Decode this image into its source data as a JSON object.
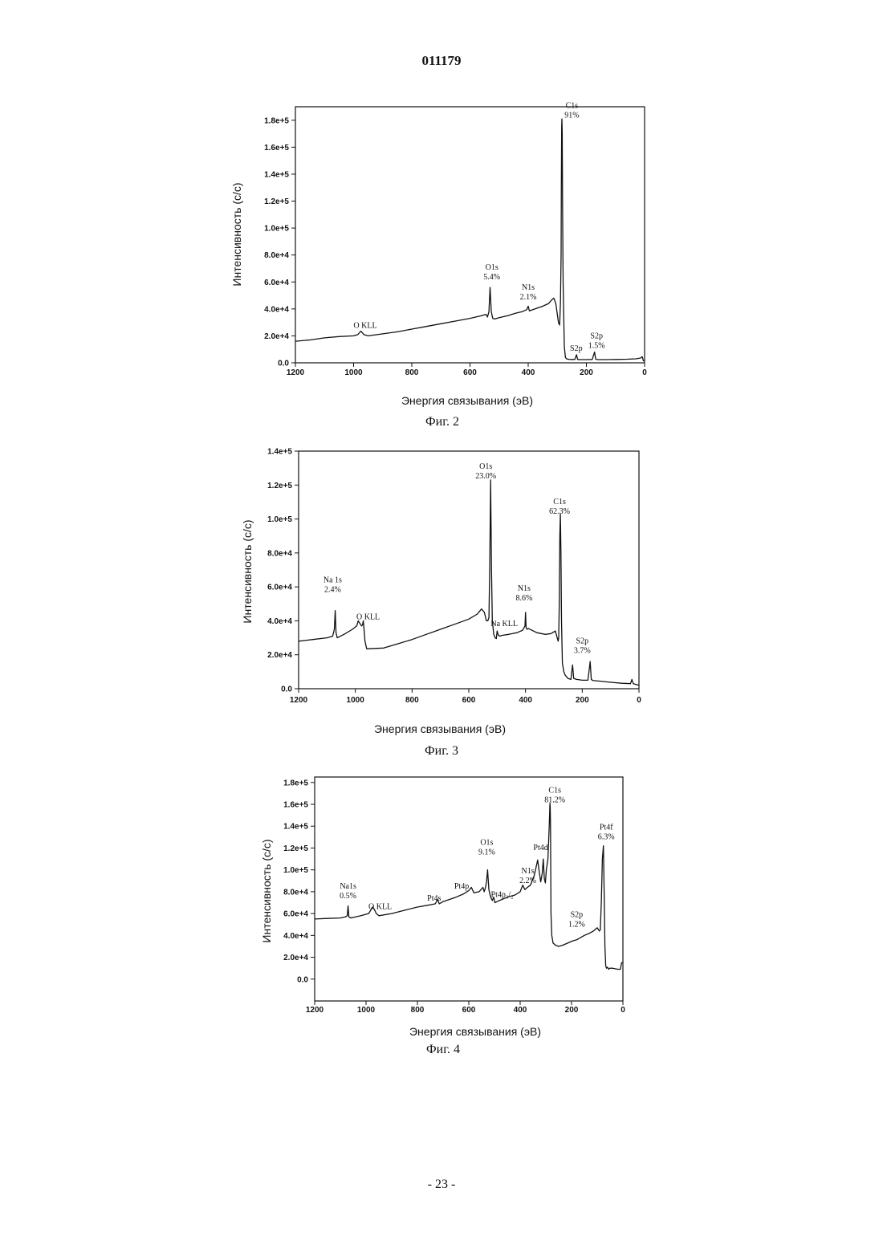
{
  "header": {
    "doc_number": "011179"
  },
  "footer": {
    "page_number": "- 23 -"
  },
  "chart_data": [
    {
      "type": "line",
      "caption": "Фиг. 2",
      "xlabel": "Энергия связывания (эВ)",
      "ylabel": "Интенсивность (с/с)",
      "xlim": [
        1200,
        0
      ],
      "ylim": [
        0,
        190000
      ],
      "x_ticks": [
        1200,
        1000,
        800,
        600,
        400,
        200,
        0
      ],
      "x_tick_labels": [
        "1200",
        "1000",
        "800",
        "600",
        "400",
        "200",
        "0"
      ],
      "y_ticks": [
        0,
        20000,
        40000,
        60000,
        80000,
        100000,
        120000,
        140000,
        160000,
        180000
      ],
      "y_tick_labels": [
        "0.0",
        "2.0e+4",
        "4.0e+4",
        "6.0e+4",
        "8.0e+4",
        "1.0e+5",
        "1.2e+5",
        "1.4e+5",
        "1.6e+5",
        "1.8e+5"
      ],
      "grid": false,
      "series": [
        {
          "x": [
            1200,
            1150,
            1100,
            1050,
            1000,
            985,
            975,
            965,
            950,
            900,
            850,
            800,
            750,
            700,
            650,
            600,
            560,
            545,
            540,
            535,
            531,
            527,
            522,
            515,
            500,
            470,
            440,
            420,
            405,
            400,
            396,
            390,
            370,
            350,
            330,
            320,
            312,
            305,
            300,
            296,
            292,
            289,
            287,
            286,
            285,
            284,
            283,
            282,
            280,
            276,
            272,
            268,
            265,
            260,
            250,
            240,
            234,
            230,
            220,
            200,
            180,
            172,
            168,
            164,
            160,
            140,
            100,
            60,
            30,
            15,
            8,
            4,
            0
          ],
          "y": [
            16000,
            17000,
            18500,
            19500,
            20000,
            21000,
            23500,
            21000,
            20000,
            21500,
            23000,
            25000,
            27000,
            29000,
            31000,
            33000,
            35000,
            36000,
            34000,
            38000,
            56000,
            38000,
            33000,
            32500,
            33500,
            35000,
            37000,
            38000,
            39500,
            42000,
            38500,
            39000,
            40500,
            42000,
            44000,
            46500,
            48000,
            44000,
            36000,
            30000,
            28000,
            45000,
            80000,
            130000,
            175000,
            181000,
            170000,
            120000,
            60000,
            12000,
            4000,
            3000,
            2800,
            2600,
            2500,
            2500,
            6000,
            2500,
            2400,
            2400,
            2500,
            8000,
            2800,
            2500,
            2400,
            2400,
            2500,
            2700,
            3000,
            3500,
            4500,
            1500,
            1500
          ]
        }
      ],
      "annotations": [
        {
          "x": 960,
          "y": 26000,
          "lines": [
            "O KLL"
          ]
        },
        {
          "x": 525,
          "y": 62000,
          "lines": [
            "O1s",
            "5.4%"
          ]
        },
        {
          "x": 400,
          "y": 47000,
          "lines": [
            "N1s",
            "2.1%"
          ]
        },
        {
          "x": 250,
          "y": 182000,
          "lines": [
            "C1s",
            "91%"
          ]
        },
        {
          "x": 235,
          "y": 9000,
          "lines": [
            "S2p"
          ]
        },
        {
          "x": 165,
          "y": 11000,
          "lines": [
            "S2p",
            "1.5%"
          ]
        }
      ]
    },
    {
      "type": "line",
      "caption": "Фиг. 3",
      "xlabel": "Энергия связывания (эВ)",
      "ylabel": "Интенсивность (с/с)",
      "xlim": [
        1200,
        0
      ],
      "ylim": [
        0,
        140000
      ],
      "x_ticks": [
        1200,
        1000,
        800,
        600,
        400,
        200,
        0
      ],
      "x_tick_labels": [
        "1200",
        "1000",
        "800",
        "600",
        "400",
        "200",
        "0"
      ],
      "y_ticks": [
        0,
        20000,
        40000,
        60000,
        80000,
        100000,
        120000,
        140000
      ],
      "y_tick_labels": [
        "0.0",
        "2.0e+4",
        "4.0e+4",
        "6.0e+4",
        "8.0e+4",
        "1.0e+5",
        "1.2e+5",
        "1.4e+5"
      ],
      "grid": false,
      "series": [
        {
          "x": [
            1200,
            1150,
            1100,
            1080,
            1074,
            1071,
            1068,
            1064,
            1040,
            1010,
            995,
            990,
            982,
            978,
            975,
            972,
            966,
            960,
            900,
            850,
            800,
            750,
            700,
            650,
            600,
            570,
            555,
            545,
            538,
            533,
            529,
            526,
            523,
            520,
            517,
            512,
            507,
            503,
            500,
            497,
            492,
            480,
            460,
            430,
            410,
            402,
            400,
            398,
            395,
            390,
            360,
            330,
            310,
            295,
            285,
            283,
            281,
            279,
            277,
            275,
            273,
            270,
            265,
            260,
            250,
            240,
            234,
            230,
            220,
            200,
            180,
            172,
            168,
            164,
            160,
            140,
            100,
            60,
            30,
            25,
            20,
            10,
            0
          ],
          "y": [
            28000,
            29000,
            30000,
            31000,
            35000,
            46000,
            33000,
            30000,
            32000,
            35000,
            37000,
            40000,
            38000,
            37000,
            37500,
            40000,
            28000,
            23500,
            24000,
            26500,
            29000,
            32000,
            35000,
            38000,
            41000,
            44000,
            47000,
            45000,
            40000,
            40000,
            42000,
            72000,
            123000,
            70000,
            40000,
            32000,
            30000,
            29500,
            34000,
            32000,
            31000,
            31500,
            32000,
            33000,
            34500,
            37000,
            45000,
            36000,
            35000,
            35500,
            33000,
            32000,
            32500,
            34000,
            28000,
            30000,
            50000,
            90000,
            103000,
            80000,
            40000,
            15000,
            10000,
            8000,
            6000,
            5500,
            14000,
            6000,
            5500,
            5000,
            5000,
            16000,
            5500,
            5000,
            4800,
            4500,
            3800,
            3200,
            3000,
            5500,
            3000,
            2500,
            2000
          ]
        }
      ],
      "annotations": [
        {
          "x": 1080,
          "y": 57000,
          "lines": [
            "Na 1s",
            "2.4%"
          ]
        },
        {
          "x": 955,
          "y": 41000,
          "lines": [
            "O KLL"
          ]
        },
        {
          "x": 540,
          "y": 124000,
          "lines": [
            "O1s",
            "23.0%"
          ]
        },
        {
          "x": 475,
          "y": 37000,
          "lines": [
            "Na KLL"
          ]
        },
        {
          "x": 405,
          "y": 52000,
          "lines": [
            "N1s",
            "8.6%"
          ]
        },
        {
          "x": 280,
          "y": 103000,
          "lines": [
            "C1s",
            "62.3%"
          ]
        },
        {
          "x": 200,
          "y": 21000,
          "lines": [
            "S2p",
            "3.7%"
          ]
        }
      ]
    },
    {
      "type": "line",
      "caption": "Фиг. 4",
      "xlabel": "Энергия связывания (эВ)",
      "ylabel": "Интенсивность (с/с)",
      "xlim": [
        1200,
        0
      ],
      "ylim": [
        -20000,
        185000
      ],
      "x_ticks": [
        1200,
        1000,
        800,
        600,
        400,
        200,
        0
      ],
      "x_tick_labels": [
        "1200",
        "1000",
        "800",
        "600",
        "400",
        "200",
        "0"
      ],
      "y_ticks": [
        0,
        20000,
        40000,
        60000,
        80000,
        100000,
        120000,
        140000,
        160000,
        180000
      ],
      "y_tick_labels": [
        "0.0",
        "2.0e+4",
        "4.0e+4",
        "6.0e+4",
        "8.0e+4",
        "1.0e+5",
        "1.2e+5",
        "1.4e+5",
        "1.6e+5",
        "1.8e+5"
      ],
      "grid": false,
      "series": [
        {
          "x": [
            1200,
            1150,
            1100,
            1080,
            1073,
            1070,
            1067,
            1060,
            1020,
            990,
            982,
            975,
            968,
            960,
            950,
            900,
            850,
            800,
            750,
            730,
            722,
            715,
            700,
            650,
            620,
            600,
            590,
            580,
            560,
            545,
            540,
            535,
            531,
            527,
            522,
            518,
            513,
            508,
            503,
            498,
            490,
            470,
            450,
            420,
            400,
            390,
            382,
            372,
            360,
            345,
            332,
            325,
            320,
            314,
            310,
            306,
            302,
            298,
            292,
            287,
            284,
            283,
            282,
            281,
            280,
            277,
            272,
            262,
            250,
            235,
            215,
            195,
            180,
            165,
            150,
            130,
            115,
            100,
            92,
            88,
            84,
            80,
            76,
            73,
            70,
            67,
            64,
            60,
            56,
            50,
            40,
            30,
            20,
            10,
            5,
            0
          ],
          "y": [
            55000,
            55500,
            56000,
            57000,
            58000,
            67000,
            57000,
            56000,
            58000,
            60000,
            63000,
            66000,
            64000,
            60000,
            58000,
            60000,
            63000,
            66000,
            68000,
            69000,
            73000,
            69000,
            71000,
            75000,
            78000,
            81000,
            84000,
            79000,
            80000,
            84000,
            80000,
            84000,
            89000,
            100000,
            82000,
            78000,
            74000,
            72000,
            75000,
            70000,
            71000,
            73000,
            75000,
            77000,
            80000,
            86000,
            82000,
            84000,
            86000,
            95000,
            109000,
            97000,
            89000,
            97000,
            110000,
            92000,
            88000,
            100000,
            110000,
            140000,
            161000,
            158000,
            140000,
            100000,
            60000,
            40000,
            33000,
            31000,
            30000,
            31000,
            33000,
            35000,
            36000,
            38000,
            40000,
            42000,
            44000,
            47000,
            44000,
            45000,
            70000,
            110000,
            122000,
            80000,
            30000,
            12000,
            10000,
            11000,
            9000,
            10000,
            10000,
            9500,
            9000,
            9000,
            15000,
            15000
          ]
        }
      ],
      "annotations": [
        {
          "x": 1070,
          "y": 74000,
          "lines": [
            "Na1s",
            "0.5%"
          ]
        },
        {
          "x": 945,
          "y": 64000,
          "lines": [
            "O KLL"
          ]
        },
        {
          "x": 735,
          "y": 72000,
          "lines": [
            "Pt4s"
          ]
        },
        {
          "x": 628,
          "y": 83000,
          "lines": [
            "Pt4p"
          ]
        },
        {
          "x": 530,
          "y": 114000,
          "lines": [
            "O1s",
            "9.1%"
          ]
        },
        {
          "x": 470,
          "y": 75000,
          "lines": [
            "Pt4p₃/₂"
          ]
        },
        {
          "x": 370,
          "y": 88000,
          "lines": [
            "N1s",
            "2.2%"
          ]
        },
        {
          "x": 320,
          "y": 118000,
          "lines": [
            "Pt4d"
          ]
        },
        {
          "x": 265,
          "y": 162000,
          "lines": [
            "C1s",
            "81.2%"
          ]
        },
        {
          "x": 180,
          "y": 48000,
          "lines": [
            "S2p",
            "1.2%"
          ]
        },
        {
          "x": 65,
          "y": 128000,
          "lines": [
            "Pt4f",
            "6.3%"
          ]
        }
      ]
    }
  ]
}
